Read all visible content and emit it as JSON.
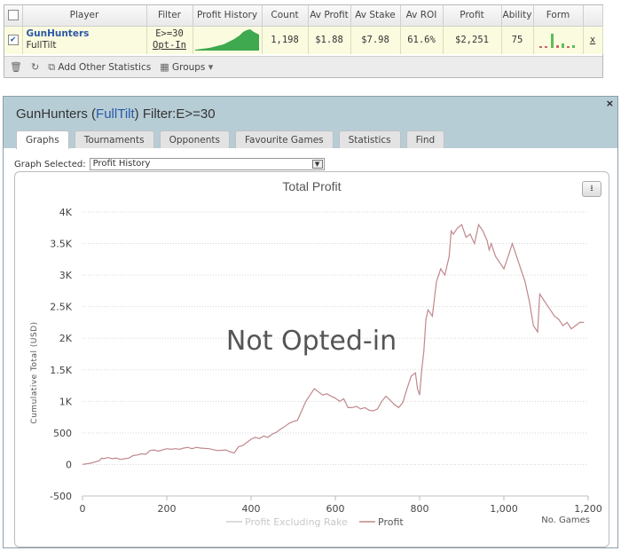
{
  "table": {
    "headers": [
      "",
      "Player",
      "Filter",
      "Profit History",
      "Count",
      "Av Profit",
      "Av Stake",
      "Av ROI",
      "Profit",
      "Ability",
      "Form",
      ""
    ],
    "row": {
      "checked": true,
      "player_name": "GunHunters",
      "player_site": "FullTilt",
      "filter_value": "E>=30",
      "filter_status": "Opt-In",
      "count": "1,198",
      "av_profit": "$1.88",
      "av_stake": "$7.98",
      "av_roi": "61.6%",
      "profit": "$2,251",
      "ability": "75",
      "remove_label": "x"
    },
    "footer": {
      "add_stats_label": "Add Other Statistics",
      "groups_label": "Groups"
    }
  },
  "window": {
    "player": "GunHunters",
    "site": "FullTilt",
    "filter": "Filter:E>=30",
    "close": "×",
    "tabs": [
      "Graphs",
      "Tournaments",
      "Opponents",
      "Favourite Games",
      "Statistics",
      "Find"
    ],
    "active_tab": "Graphs",
    "graph_selected_label": "Graph Selected:",
    "graph_selected_value": "Profit History"
  },
  "colors": {
    "profit_line": "#c0888c",
    "excl_rake_line": "#d0d0d0",
    "player_link": "#2a57a6",
    "header_bg": "#b7cdd6",
    "row_highlight": "#fbfbe0"
  },
  "chart_data": {
    "type": "line",
    "title": "Total Profit",
    "overlay_text": "Not Opted-in",
    "ylabel": "Cumulative Total (USD)",
    "xlabel": "No. Games",
    "xlim": [
      0,
      1200
    ],
    "ylim": [
      -500,
      4000
    ],
    "x_ticks": [
      "0",
      "200",
      "400",
      "600",
      "800",
      "1,000",
      "1,200"
    ],
    "y_ticks": [
      "-500",
      "0",
      "500",
      "1K",
      "1.5K",
      "2K",
      "2.5K",
      "3K",
      "3.5K",
      "4K"
    ],
    "grid": true,
    "legend_position": "bottom-center",
    "series": [
      {
        "name": "Profit Excluding Rake",
        "values": []
      },
      {
        "name": "Profit",
        "points": [
          [
            0,
            0
          ],
          [
            10,
            10
          ],
          [
            20,
            20
          ],
          [
            30,
            40
          ],
          [
            40,
            60
          ],
          [
            45,
            100
          ],
          [
            50,
            90
          ],
          [
            60,
            110
          ],
          [
            70,
            90
          ],
          [
            80,
            100
          ],
          [
            90,
            80
          ],
          [
            100,
            90
          ],
          [
            110,
            100
          ],
          [
            120,
            140
          ],
          [
            130,
            150
          ],
          [
            140,
            170
          ],
          [
            150,
            160
          ],
          [
            160,
            220
          ],
          [
            170,
            230
          ],
          [
            180,
            210
          ],
          [
            190,
            230
          ],
          [
            200,
            250
          ],
          [
            210,
            240
          ],
          [
            220,
            250
          ],
          [
            230,
            240
          ],
          [
            240,
            260
          ],
          [
            250,
            270
          ],
          [
            260,
            250
          ],
          [
            270,
            270
          ],
          [
            280,
            260
          ],
          [
            300,
            250
          ],
          [
            320,
            220
          ],
          [
            340,
            230
          ],
          [
            350,
            200
          ],
          [
            360,
            180
          ],
          [
            370,
            280
          ],
          [
            380,
            300
          ],
          [
            390,
            350
          ],
          [
            400,
            400
          ],
          [
            410,
            430
          ],
          [
            420,
            410
          ],
          [
            430,
            450
          ],
          [
            440,
            430
          ],
          [
            450,
            480
          ],
          [
            460,
            510
          ],
          [
            470,
            560
          ],
          [
            480,
            600
          ],
          [
            490,
            650
          ],
          [
            500,
            680
          ],
          [
            510,
            700
          ],
          [
            520,
            850
          ],
          [
            530,
            1000
          ],
          [
            540,
            1100
          ],
          [
            550,
            1200
          ],
          [
            560,
            1150
          ],
          [
            570,
            1100
          ],
          [
            580,
            1120
          ],
          [
            590,
            1080
          ],
          [
            600,
            1050
          ],
          [
            610,
            1000
          ],
          [
            620,
            1040
          ],
          [
            630,
            900
          ],
          [
            640,
            900
          ],
          [
            650,
            920
          ],
          [
            660,
            880
          ],
          [
            670,
            900
          ],
          [
            680,
            860
          ],
          [
            690,
            850
          ],
          [
            700,
            880
          ],
          [
            710,
            1000
          ],
          [
            720,
            1080
          ],
          [
            730,
            1020
          ],
          [
            740,
            950
          ],
          [
            750,
            900
          ],
          [
            760,
            980
          ],
          [
            770,
            1200
          ],
          [
            780,
            1400
          ],
          [
            790,
            1450
          ],
          [
            795,
            1200
          ],
          [
            800,
            1100
          ],
          [
            805,
            1500
          ],
          [
            810,
            1800
          ],
          [
            815,
            2300
          ],
          [
            820,
            2450
          ],
          [
            830,
            2350
          ],
          [
            840,
            2900
          ],
          [
            850,
            3100
          ],
          [
            860,
            3000
          ],
          [
            870,
            3300
          ],
          [
            875,
            3700
          ],
          [
            880,
            3650
          ],
          [
            890,
            3750
          ],
          [
            900,
            3800
          ],
          [
            905,
            3700
          ],
          [
            910,
            3600
          ],
          [
            920,
            3650
          ],
          [
            930,
            3500
          ],
          [
            940,
            3800
          ],
          [
            950,
            3700
          ],
          [
            960,
            3550
          ],
          [
            965,
            3400
          ],
          [
            970,
            3500
          ],
          [
            980,
            3300
          ],
          [
            990,
            3200
          ],
          [
            1000,
            3100
          ],
          [
            1010,
            3300
          ],
          [
            1020,
            3500
          ],
          [
            1030,
            3300
          ],
          [
            1040,
            3100
          ],
          [
            1050,
            2900
          ],
          [
            1060,
            2600
          ],
          [
            1070,
            2200
          ],
          [
            1080,
            2100
          ],
          [
            1085,
            2700
          ],
          [
            1090,
            2650
          ],
          [
            1100,
            2550
          ],
          [
            1110,
            2450
          ],
          [
            1120,
            2350
          ],
          [
            1130,
            2300
          ],
          [
            1140,
            2200
          ],
          [
            1150,
            2250
          ],
          [
            1160,
            2150
          ],
          [
            1170,
            2200
          ],
          [
            1180,
            2250
          ],
          [
            1190,
            2250
          ]
        ]
      }
    ]
  }
}
